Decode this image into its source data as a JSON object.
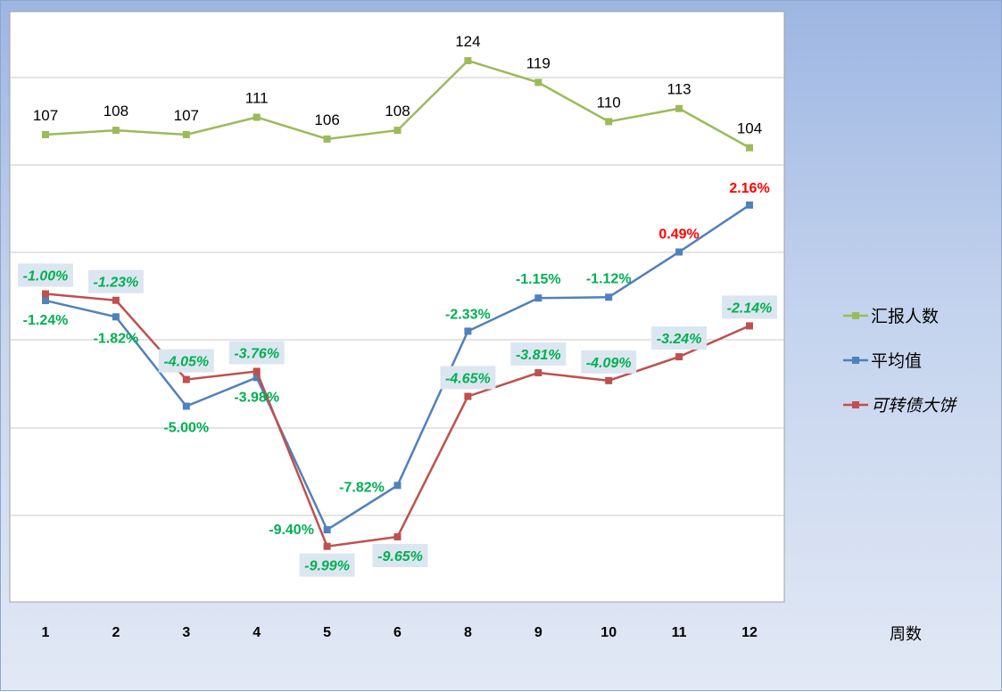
{
  "chart_data": {
    "type": "line",
    "title": "",
    "xlabel": "周数",
    "categories": [
      "1",
      "2",
      "3",
      "4",
      "5",
      "6",
      "8",
      "9",
      "10",
      "11",
      "12"
    ],
    "series": [
      {
        "name": "汇报人数",
        "axis": "secondary",
        "color": "#9bbb59",
        "values": [
          107,
          108,
          107,
          111,
          106,
          108,
          124,
          119,
          110,
          113,
          104
        ],
        "labels": [
          "107",
          "108",
          "107",
          "111",
          "106",
          "108",
          "124",
          "119",
          "110",
          "113",
          "104"
        ]
      },
      {
        "name": "平均值",
        "axis": "primary",
        "unit": "%",
        "color": "#4f81bd",
        "values": [
          -1.24,
          -1.82,
          -5.0,
          -3.98,
          -9.4,
          -7.82,
          -2.33,
          -1.15,
          -1.12,
          0.49,
          2.16
        ],
        "labels": [
          "-1.24%",
          "-1.82%",
          "-5.00%",
          "-3.98%",
          "-9.40%",
          "-7.82%",
          "-2.33%",
          "-1.15%",
          "-1.12%",
          "0.49%",
          "2.16%"
        ]
      },
      {
        "name": "可转债大饼",
        "axis": "primary",
        "unit": "%",
        "color": "#c0504d",
        "values": [
          -1.0,
          -1.23,
          -4.05,
          -3.76,
          -9.99,
          -9.65,
          -4.65,
          -3.81,
          -4.09,
          -3.24,
          -2.14
        ],
        "labels": [
          "-1.00%",
          "-1.23%",
          "-4.05%",
          "-3.76%",
          "-9.99%",
          "-9.65%",
          "-4.65%",
          "-3.81%",
          "-4.09%",
          "-3.24%",
          "-2.14%"
        ]
      }
    ],
    "label_colors": {
      "negative": "#00b050",
      "positive": "#ff0000",
      "count": "#000000"
    },
    "grid": true,
    "legend": "right"
  }
}
